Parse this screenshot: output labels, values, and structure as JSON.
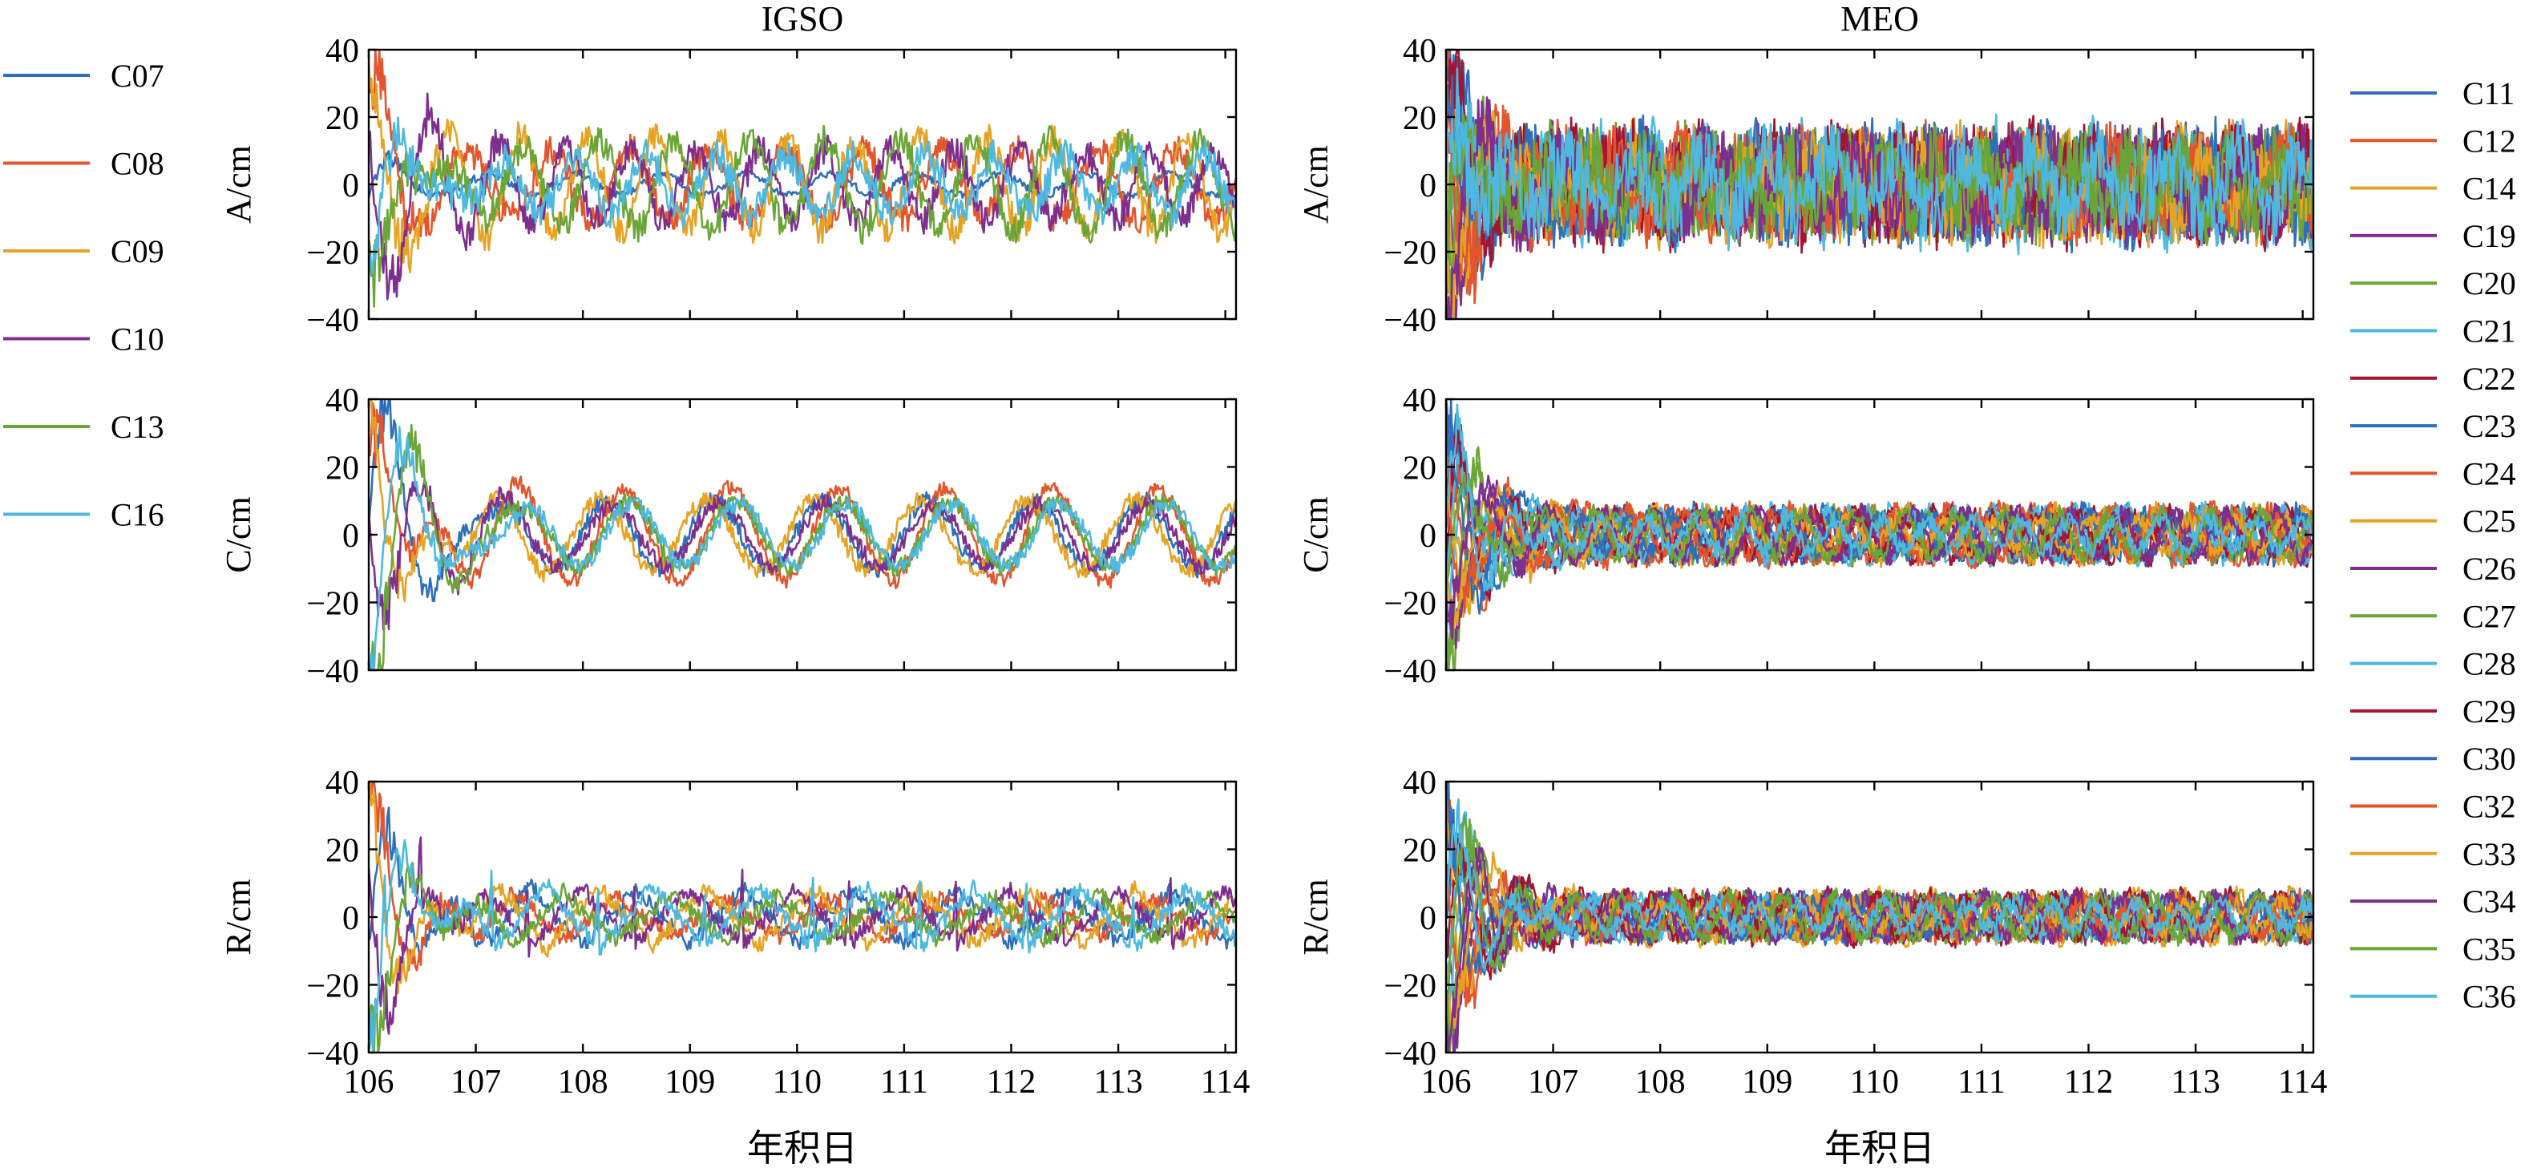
{
  "chart_data": {
    "type": "line",
    "xlabel": "年积日",
    "xlim": [
      106,
      114.1
    ],
    "xticks": [
      106,
      107,
      108,
      109,
      110,
      111,
      112,
      113,
      114
    ],
    "ylim": [
      -40,
      40
    ],
    "yticks": [
      -40,
      -20,
      0,
      20,
      40
    ],
    "grid": false,
    "components": [
      {
        "key": "A",
        "ylabel": "A/cm"
      },
      {
        "key": "C",
        "ylabel": "C/cm"
      },
      {
        "key": "R",
        "ylabel": "R/cm"
      }
    ],
    "groups": [
      {
        "title": "IGSO",
        "legend_position": "left",
        "series": [
          {
            "name": "C07",
            "color": "#2f6eba"
          },
          {
            "name": "C08",
            "color": "#e2552d"
          },
          {
            "name": "C09",
            "color": "#e6a323"
          },
          {
            "name": "C10",
            "color": "#7e2f8e"
          },
          {
            "name": "C13",
            "color": "#6aa637"
          },
          {
            "name": "C16",
            "color": "#4db8e0"
          }
        ]
      },
      {
        "title": "MEO",
        "legend_position": "right",
        "series": [
          {
            "name": "C11",
            "color": "#2f6eba"
          },
          {
            "name": "C12",
            "color": "#e2552d"
          },
          {
            "name": "C14",
            "color": "#e6a323"
          },
          {
            "name": "C19",
            "color": "#7e2f8e"
          },
          {
            "name": "C20",
            "color": "#6aa637"
          },
          {
            "name": "C21",
            "color": "#4db8e0"
          },
          {
            "name": "C22",
            "color": "#a2142f"
          },
          {
            "name": "C23",
            "color": "#2f6eba"
          },
          {
            "name": "C24",
            "color": "#e2552d"
          },
          {
            "name": "C25",
            "color": "#e6a323"
          },
          {
            "name": "C26",
            "color": "#7e2f8e"
          },
          {
            "name": "C27",
            "color": "#6aa637"
          },
          {
            "name": "C28",
            "color": "#4db8e0"
          },
          {
            "name": "C29",
            "color": "#a2142f"
          },
          {
            "name": "C30",
            "color": "#2f6eba"
          },
          {
            "name": "C32",
            "color": "#e2552d"
          },
          {
            "name": "C33",
            "color": "#e6a323"
          },
          {
            "name": "C34",
            "color": "#7e2f8e"
          },
          {
            "name": "C35",
            "color": "#6aa637"
          },
          {
            "name": "C36",
            "color": "#4db8e0"
          }
        ]
      }
    ]
  }
}
